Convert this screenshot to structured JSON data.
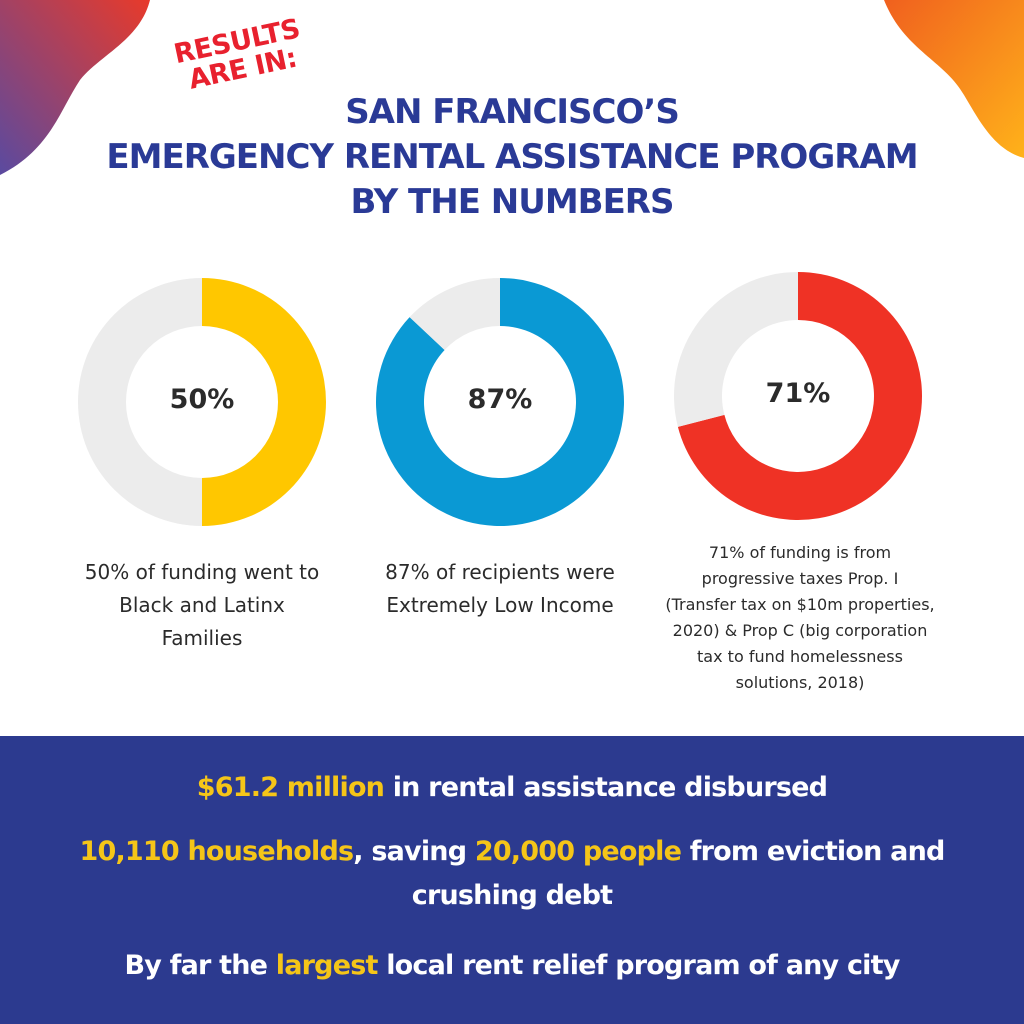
{
  "header": {
    "tag_line1": "RESULTS",
    "tag_line2": "ARE IN:",
    "title_line1": "SAN FRANCISCO’S",
    "title_line2": "EMERGENCY RENTAL ASSISTANCE PROGRAM",
    "title_line3": "BY THE NUMBERS"
  },
  "chart_data": [
    {
      "type": "pie",
      "center_label": "50%",
      "values": [
        50,
        50
      ],
      "colors": [
        "#ffc700",
        "#ececec"
      ],
      "caption": [
        "50% of funding went to",
        "Black and Latinx",
        "Families"
      ]
    },
    {
      "type": "pie",
      "center_label": "87%",
      "values": [
        87,
        13
      ],
      "colors": [
        "#0a99d4",
        "#ececec"
      ],
      "caption": [
        "87% of recipients were",
        "Extremely Low Income"
      ]
    },
    {
      "type": "pie",
      "center_label": "71%",
      "values": [
        71,
        29
      ],
      "colors": [
        "#ef3225",
        "#ececec"
      ],
      "caption": [
        "71% of funding is from",
        "progressive taxes Prop. I",
        "(Transfer tax on $10m properties,",
        "2020) & Prop C (big corporation",
        "tax to fund homelessness",
        "solutions, 2018)"
      ]
    }
  ],
  "banner": {
    "line1": {
      "hl1": "$61.2 million",
      "rest": " in rental assistance disbursed"
    },
    "line2": {
      "hl1": "10,110 households",
      "mid": ", saving ",
      "hl2": "20,000 people",
      "rest1": " from eviction and",
      "rest2": "crushing debt"
    },
    "line3": {
      "pre": "By far the ",
      "hl": "largest",
      "rest": " local rent relief program of any city"
    }
  },
  "colors": {
    "title": "#2a3a96",
    "tag": "#e8212e",
    "banner_bg": "#2c3a8f",
    "highlight": "#f5c518"
  }
}
